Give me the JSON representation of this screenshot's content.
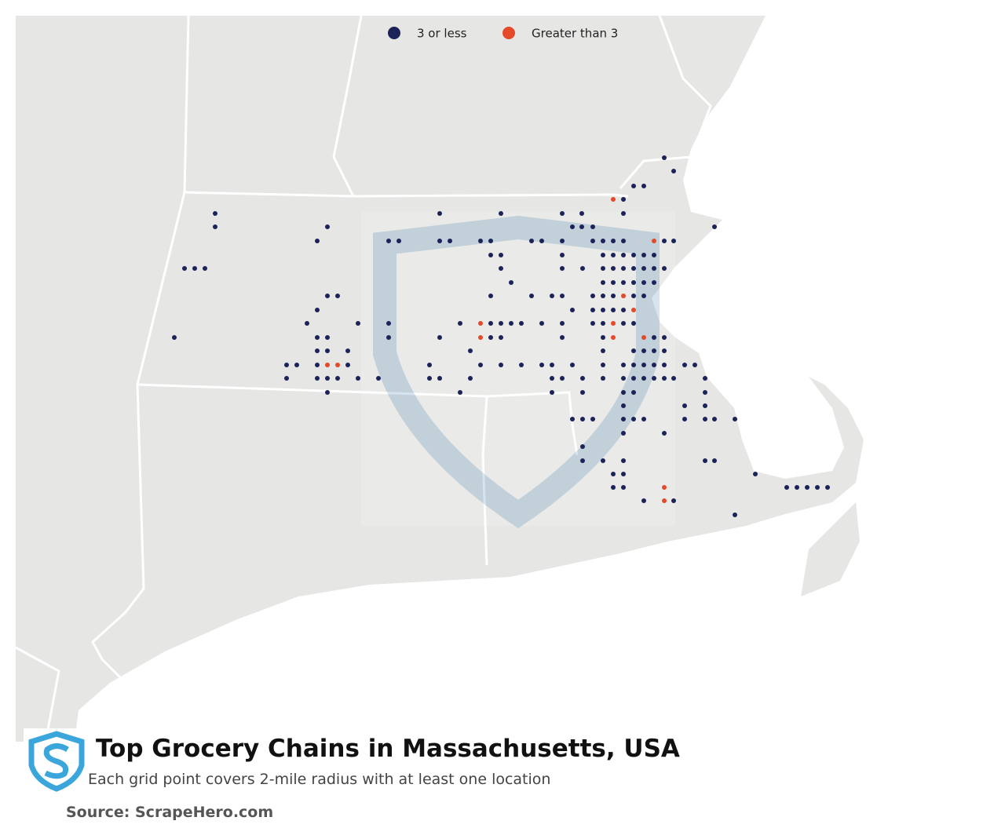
{
  "legend": [
    {
      "label": "3 or less",
      "color": "#1b2358"
    },
    {
      "label": "Greater than 3",
      "color": "#e4492a"
    }
  ],
  "title": "Top Grocery Chains in Massachusetts, USA",
  "subtitle": "Each grid point covers 2-mile radius with at least one location",
  "source": "Source: ScrapeHero.com"
}
